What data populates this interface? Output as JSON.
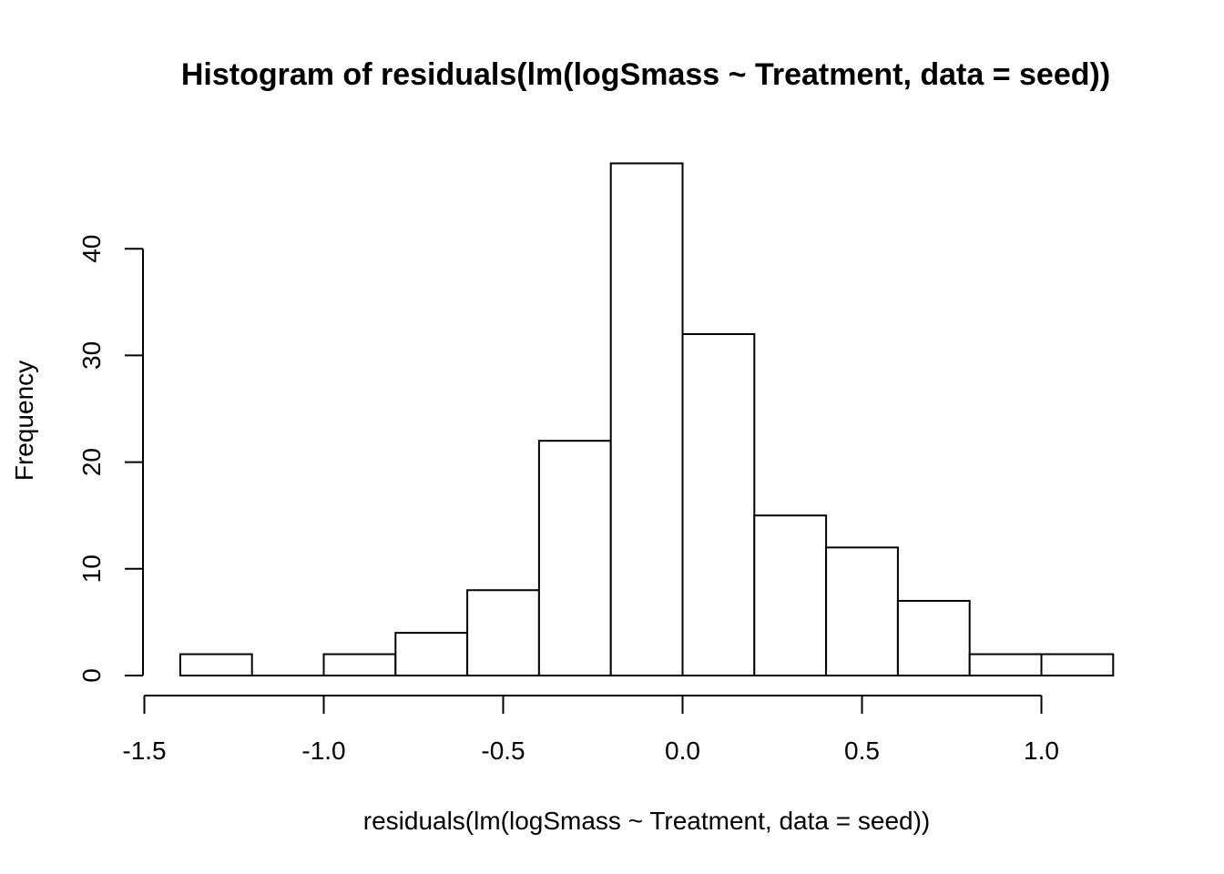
{
  "chart_data": {
    "type": "bar",
    "subtype": "histogram",
    "title": "Histogram of residuals(lm(logSmass ~ Treatment, data = seed))",
    "xlabel": "residuals(lm(logSmass ~ Treatment, data = seed))",
    "ylabel": "Frequency",
    "bin_edges": [
      -1.4,
      -1.2,
      -1.0,
      -0.8,
      -0.6,
      -0.4,
      -0.2,
      0.0,
      0.2,
      0.4,
      0.6,
      0.8,
      1.0,
      1.2
    ],
    "counts": [
      2,
      0,
      2,
      4,
      8,
      22,
      48,
      32,
      15,
      12,
      7,
      2,
      2
    ],
    "xlim": [
      -1.5,
      1.2
    ],
    "ylim": [
      0,
      48
    ],
    "x_ticks": [
      -1.5,
      -1.0,
      -0.5,
      0.0,
      0.5,
      1.0
    ],
    "x_tick_labels": [
      "-1.5",
      "-1.0",
      "-0.5",
      "0.0",
      "0.5",
      "1.0"
    ],
    "y_ticks": [
      0,
      10,
      20,
      30,
      40
    ],
    "y_tick_labels": [
      "0",
      "10",
      "20",
      "30",
      "40"
    ],
    "grid": false,
    "bar_fill": "#ffffff",
    "bar_stroke": "#000000"
  }
}
